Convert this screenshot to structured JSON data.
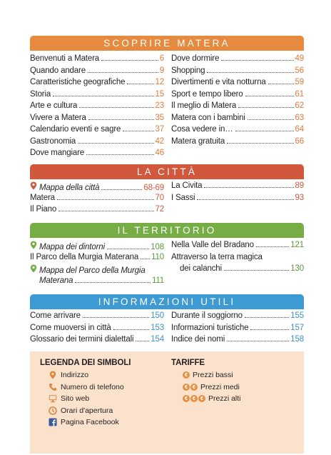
{
  "colors": {
    "orange": "#e58a3f",
    "red": "#d1573d",
    "green": "#76ad45",
    "blue": "#3d9ad2",
    "legend_bg": "#fbe2cc",
    "icon": "#e0853c",
    "facebook": "#3b5a9a"
  },
  "sections": {
    "scoprire": {
      "title": "SCOPRIRE MATERA",
      "left": [
        {
          "label": "Benvenuti a Matera",
          "page": "6"
        },
        {
          "label": "Quando andare",
          "page": "9"
        },
        {
          "label": "Caratteristiche geografiche",
          "page": "12"
        },
        {
          "label": "Storia",
          "page": "15"
        },
        {
          "label": "Arte e cultura",
          "page": "23"
        },
        {
          "label": "Vivere a Matera",
          "page": "35"
        },
        {
          "label": "Calendario eventi e sagre",
          "page": "37"
        },
        {
          "label": "Gastronomia",
          "page": "42"
        },
        {
          "label": "Dove mangiare",
          "page": "46"
        }
      ],
      "right": [
        {
          "label": "Dove dormire",
          "page": "49"
        },
        {
          "label": "Shopping",
          "page": "56"
        },
        {
          "label": "Divertimenti e vita notturna",
          "page": "59"
        },
        {
          "label": "Sport e tempo libero",
          "page": "61"
        },
        {
          "label": "Il meglio di Matera",
          "page": "62"
        },
        {
          "label": "Matera con i bambini",
          "page": "63"
        },
        {
          "label": "Cosa vedere in…",
          "page": "64"
        },
        {
          "label": "Matera gratuita",
          "page": "66"
        }
      ]
    },
    "citta": {
      "title": "LA CITTÀ",
      "left": [
        {
          "label": "Mappa della città",
          "page": "68-69"
        },
        {
          "label": "Matera",
          "page": "70"
        },
        {
          "label": "Il Piano",
          "page": "72"
        }
      ],
      "right": [
        {
          "label": "La Civita",
          "page": "89"
        },
        {
          "label": "I Sassi",
          "page": "93"
        }
      ]
    },
    "territorio": {
      "title": "IL TERRITORIO",
      "left": [
        {
          "label": "Mappa dei dintorni",
          "page": "108"
        },
        {
          "label": "Il Parco della Murgia Materana",
          "page": "110"
        },
        {
          "label": "Mappa del Parco della Murgia",
          "page": ""
        },
        {
          "label": "Materana",
          "page": "111"
        }
      ],
      "right": [
        {
          "label": "Nella Valle del Bradano",
          "page": "121"
        },
        {
          "label": "Attraverso la terra magica",
          "page": ""
        },
        {
          "label": "dei calanchi",
          "page": "130"
        }
      ]
    },
    "info": {
      "title": "INFORMAZIONI UTILI",
      "left": [
        {
          "label": "Come arrivare",
          "page": "150"
        },
        {
          "label": "Come muoversi in città",
          "page": "153"
        },
        {
          "label": "Glossario dei termini dialettali",
          "page": "154"
        }
      ],
      "right": [
        {
          "label": "Durante il soggiorno",
          "page": "155"
        },
        {
          "label": "Informazioni turistiche",
          "page": "157"
        },
        {
          "label": "Indice dei nomi",
          "page": "158"
        }
      ]
    }
  },
  "legend": {
    "title": "LEGENDA DEI SIMBOLI",
    "items": [
      {
        "icon": "map-pin-icon",
        "label": "Indirizzo"
      },
      {
        "icon": "phone-icon",
        "label": "Numero di telefono"
      },
      {
        "icon": "monitor-icon",
        "label": "Sito web"
      },
      {
        "icon": "clock-icon",
        "label": "Orari d'apertura"
      },
      {
        "icon": "facebook-icon",
        "label": "Pagina Facebook"
      }
    ],
    "tariffe_title": "TARIFFE",
    "tariffe": [
      {
        "symbol": "€",
        "count": 1,
        "label": "Prezzi bassi"
      },
      {
        "symbol": "€",
        "count": 2,
        "label": "Prezzi medi"
      },
      {
        "symbol": "€",
        "count": 3,
        "label": "Prezzi alti"
      }
    ]
  }
}
